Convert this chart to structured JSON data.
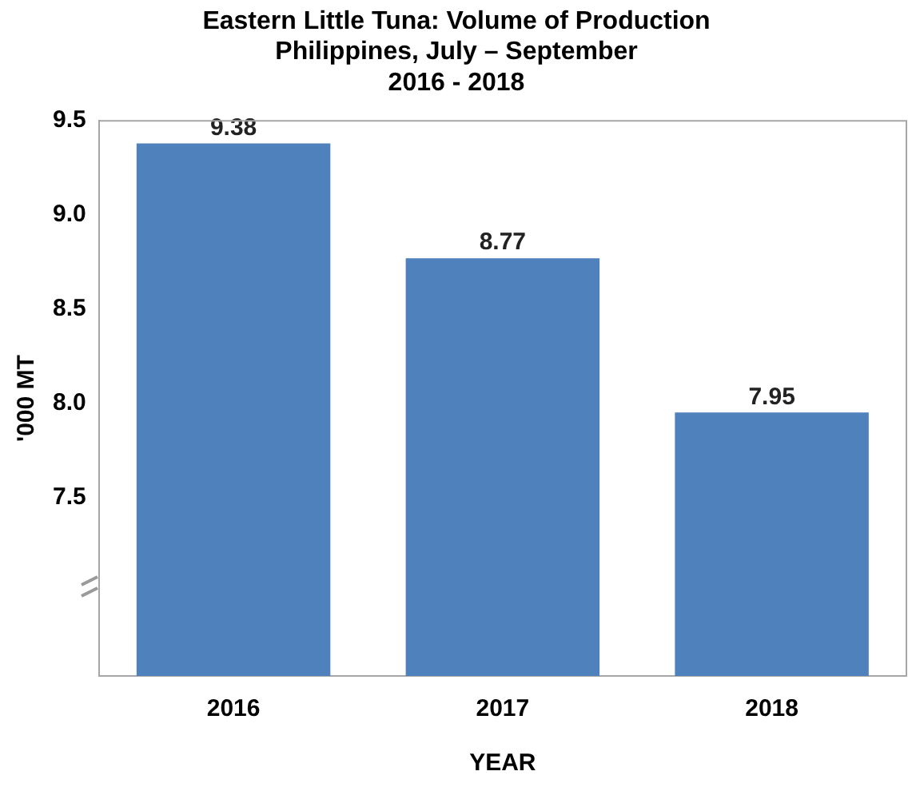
{
  "chart_data": {
    "type": "bar",
    "title": "Eastern Little Tuna: Volume of Production",
    "subtitle": "Philippines, July – September\n2016 - 2018",
    "xlabel": "YEAR",
    "ylabel": "'000 MT",
    "categories": [
      "2016",
      "2017",
      "2018"
    ],
    "values": [
      9.38,
      8.77,
      7.95
    ],
    "color": "#4f81bd",
    "ylim": [
      6.55,
      9.5
    ],
    "yticks": [
      7.5,
      {
        "value": 8,
        "label": "8.0"
      },
      8.5,
      {
        "value": 9,
        "label": "9.0"
      },
      9.5
    ],
    "grid": false,
    "legend": false,
    "data_labels": true
  }
}
